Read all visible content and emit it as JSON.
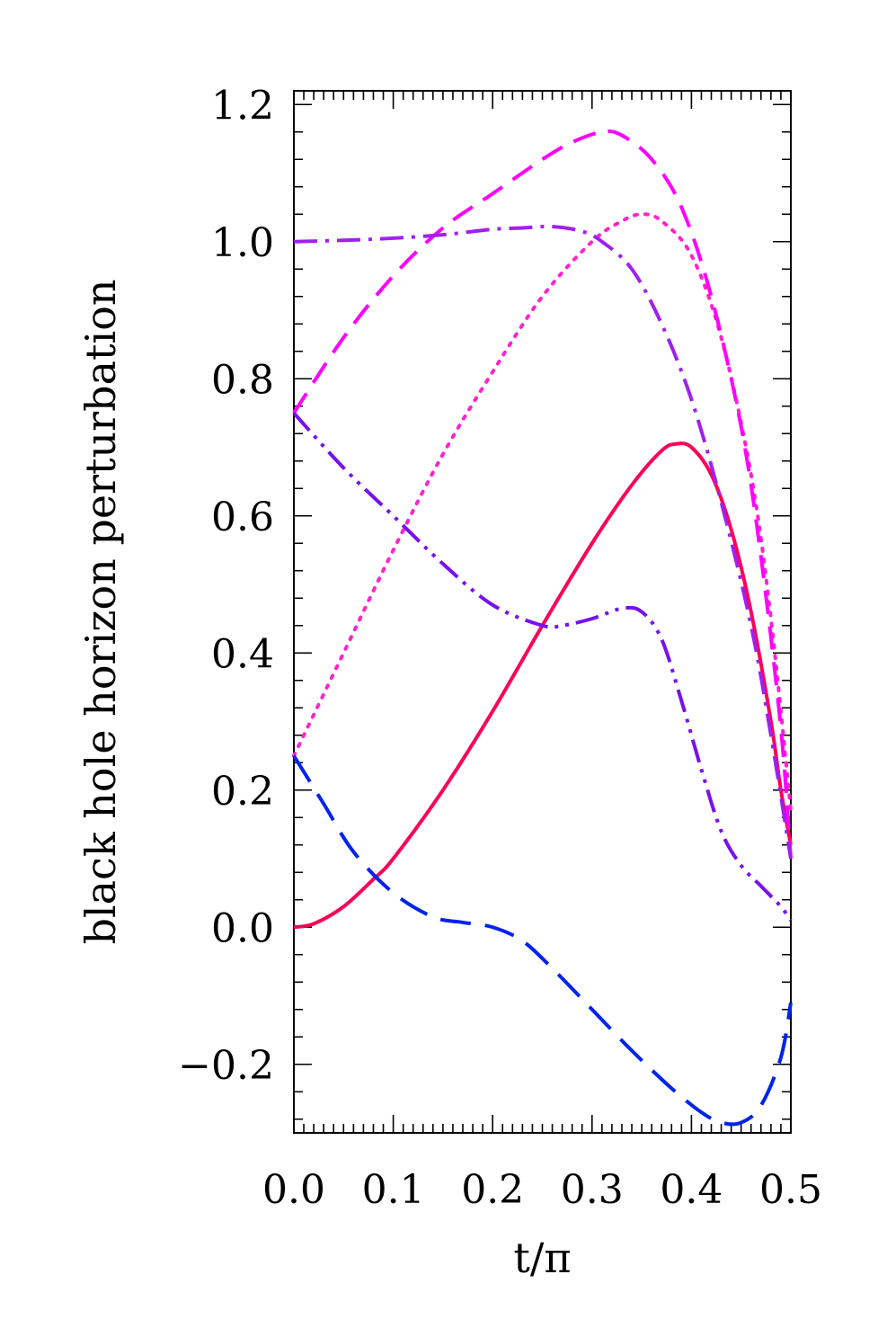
{
  "chart_data": {
    "type": "line",
    "xlabel": "t/π",
    "ylabel": "black hole horizon perturbation",
    "xlim": [
      0.0,
      0.5
    ],
    "ylim": [
      -0.3,
      1.22
    ],
    "xticks": [
      0.0,
      0.1,
      0.2,
      0.3,
      0.4,
      0.5
    ],
    "xtick_labels": [
      "0.0",
      "0.1",
      "0.2",
      "0.3",
      "0.4",
      "0.5"
    ],
    "yticks": [
      -0.2,
      0.0,
      0.2,
      0.4,
      0.6,
      0.8,
      1.0,
      1.2
    ],
    "ytick_labels": [
      "−0.2",
      "0.0",
      "0.2",
      "0.4",
      "0.6",
      "0.8",
      "1.0",
      "1.2"
    ],
    "grid": false,
    "series": [
      {
        "style": "solid",
        "color": "#ff0055",
        "x": [
          0.0,
          0.02,
          0.05,
          0.08,
          0.1,
          0.15,
          0.2,
          0.25,
          0.3,
          0.34,
          0.37,
          0.385,
          0.4,
          0.42,
          0.44,
          0.46,
          0.48,
          0.49,
          0.5
        ],
        "y": [
          0.0,
          0.005,
          0.03,
          0.07,
          0.1,
          0.2,
          0.315,
          0.44,
          0.56,
          0.645,
          0.695,
          0.705,
          0.7,
          0.66,
          0.58,
          0.46,
          0.3,
          0.2,
          0.12
        ]
      },
      {
        "style": "dotted",
        "color": "#ff22cc",
        "x": [
          0.0,
          0.05,
          0.1,
          0.15,
          0.2,
          0.25,
          0.3,
          0.33,
          0.35,
          0.37,
          0.4,
          0.43,
          0.46,
          0.48,
          0.5
        ],
        "y": [
          0.25,
          0.4,
          0.55,
          0.69,
          0.81,
          0.92,
          1.0,
          1.03,
          1.04,
          1.03,
          0.98,
          0.86,
          0.66,
          0.45,
          0.17
        ]
      },
      {
        "style": "dashed",
        "color": "#ff00ff",
        "x": [
          0.0,
          0.05,
          0.1,
          0.15,
          0.2,
          0.25,
          0.28,
          0.31,
          0.33,
          0.36,
          0.39,
          0.42,
          0.45,
          0.47,
          0.49,
          0.5
        ],
        "y": [
          0.75,
          0.86,
          0.95,
          1.02,
          1.07,
          1.12,
          1.145,
          1.16,
          1.155,
          1.12,
          1.05,
          0.92,
          0.73,
          0.54,
          0.29,
          0.1
        ]
      },
      {
        "style": "dash-dot",
        "color": "#a020f0",
        "x": [
          0.0,
          0.05,
          0.1,
          0.15,
          0.2,
          0.23,
          0.26,
          0.29,
          0.31,
          0.34,
          0.37,
          0.4,
          0.43,
          0.46,
          0.48,
          0.5
        ],
        "y": [
          1.0,
          1.002,
          1.005,
          1.01,
          1.018,
          1.02,
          1.022,
          1.015,
          1.0,
          0.96,
          0.88,
          0.77,
          0.62,
          0.44,
          0.28,
          0.1
        ]
      },
      {
        "style": "dash-dot-dot",
        "color": "#7711ee",
        "x": [
          0.0,
          0.05,
          0.1,
          0.15,
          0.2,
          0.25,
          0.27,
          0.3,
          0.33,
          0.35,
          0.37,
          0.39,
          0.41,
          0.43,
          0.45,
          0.47,
          0.49,
          0.5
        ],
        "y": [
          0.75,
          0.67,
          0.6,
          0.53,
          0.47,
          0.44,
          0.44,
          0.45,
          0.465,
          0.46,
          0.42,
          0.33,
          0.23,
          0.14,
          0.09,
          0.06,
          0.03,
          0.01
        ]
      },
      {
        "style": "long-dash",
        "color": "#0022ee",
        "x": [
          0.0,
          0.03,
          0.06,
          0.1,
          0.14,
          0.17,
          0.2,
          0.23,
          0.26,
          0.3,
          0.34,
          0.38,
          0.41,
          0.43,
          0.45,
          0.47,
          0.49,
          0.5
        ],
        "y": [
          0.25,
          0.18,
          0.11,
          0.05,
          0.015,
          0.007,
          0.0,
          -0.02,
          -0.06,
          -0.12,
          -0.18,
          -0.235,
          -0.27,
          -0.285,
          -0.285,
          -0.26,
          -0.19,
          -0.11
        ]
      }
    ]
  }
}
